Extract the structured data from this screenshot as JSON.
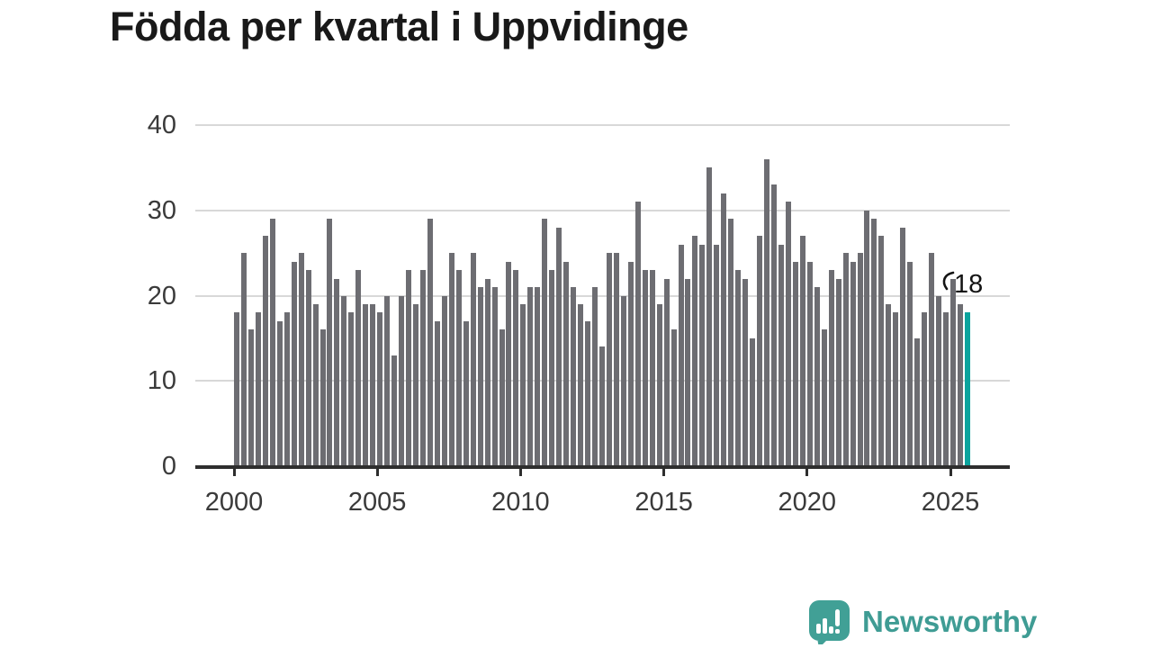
{
  "title": "Födda per kvartal i Uppvidinge",
  "chart_data": {
    "type": "bar",
    "title": "Födda per kvartal i Uppvidinge",
    "x_start": "2000 Q1",
    "x_end": "2025 Q3",
    "values": [
      18,
      25,
      16,
      18,
      27,
      29,
      17,
      18,
      24,
      25,
      23,
      19,
      16,
      29,
      22,
      20,
      18,
      23,
      19,
      19,
      18,
      20,
      13,
      20,
      23,
      19,
      23,
      29,
      17,
      20,
      25,
      23,
      17,
      25,
      21,
      22,
      21,
      16,
      24,
      23,
      19,
      21,
      21,
      29,
      23,
      28,
      24,
      21,
      19,
      17,
      21,
      14,
      25,
      25,
      20,
      24,
      31,
      23,
      23,
      19,
      22,
      16,
      26,
      22,
      27,
      26,
      35,
      26,
      32,
      29,
      23,
      22,
      15,
      27,
      36,
      33,
      26,
      31,
      24,
      27,
      24,
      21,
      16,
      23,
      22,
      25,
      24,
      25,
      30,
      29,
      27,
      19,
      18,
      28,
      24,
      15,
      18,
      25,
      20,
      18,
      22,
      19,
      18
    ],
    "highlight_index": 102,
    "highlight_value": 18,
    "yticks": [
      0,
      10,
      20,
      30,
      40
    ],
    "xticks": [
      "2000",
      "2005",
      "2010",
      "2015",
      "2020",
      "2025"
    ],
    "ylim": [
      0,
      40
    ],
    "grid": "horizontal",
    "legend_position": "none",
    "bar_color": "#6d6d72",
    "highlight_color": "#0ba39d",
    "axis_color": "#2e2e2e",
    "grid_color": "#d8d8d8",
    "tick_label_color": "#3a3a3a"
  },
  "annotation": {
    "text": "18"
  },
  "logo": {
    "text": "Newsworthy",
    "color": "#3f9c94",
    "icon": "newsworthy-speech-bubble-chart-icon"
  }
}
